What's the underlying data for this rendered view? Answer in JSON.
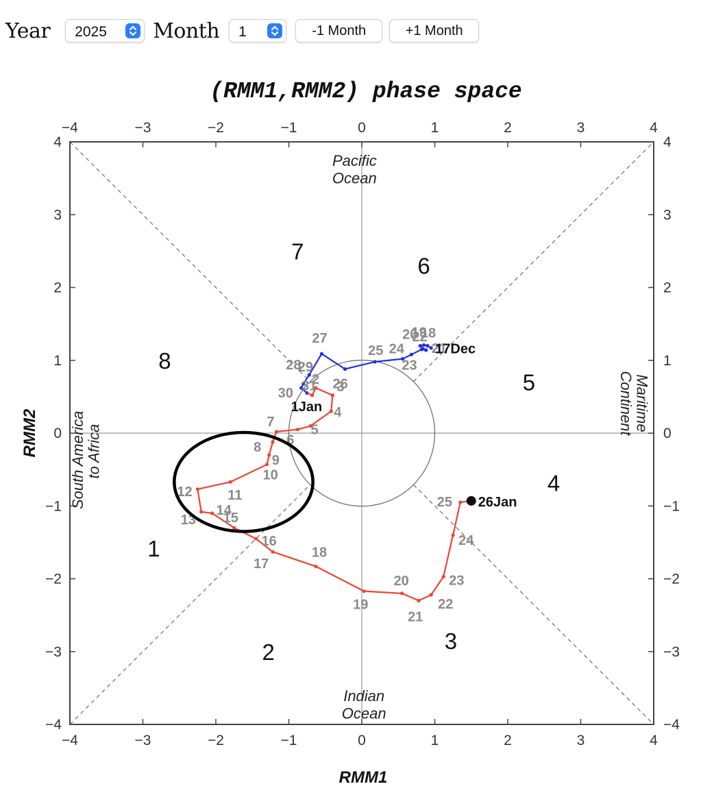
{
  "controls": {
    "year_label": "Year",
    "year_value": "2025",
    "month_label": "Month",
    "month_value": "1",
    "prev_month_label": "-1 Month",
    "next_month_label": "+1 Month",
    "accent_color": "#2c7ef5"
  },
  "chart_data": {
    "type": "scatter",
    "title": "(RMM1,RMM2) phase space",
    "xlabel": "RMM1",
    "ylabel": "RMM2",
    "xlim": [
      -4,
      4
    ],
    "ylim": [
      -4,
      4
    ],
    "ticks": [
      "−4",
      "−3",
      "−2",
      "−1",
      "0",
      "1",
      "2",
      "3",
      "4"
    ],
    "tick_values": [
      -4,
      -3,
      -2,
      -1,
      0,
      1,
      2,
      3,
      4
    ],
    "amplitude_circle_radius": 1,
    "region_labels": {
      "top": [
        "Pacific",
        "Ocean"
      ],
      "bottom": [
        "Indian",
        "Ocean"
      ],
      "left": [
        "South America",
        "to Africa"
      ],
      "right": [
        "Maritime",
        "Continent"
      ]
    },
    "phases": [
      {
        "label": "1",
        "x": -2.85,
        "y": -1.58
      },
      {
        "label": "2",
        "x": -1.28,
        "y": -3.0
      },
      {
        "label": "3",
        "x": 1.22,
        "y": -2.85
      },
      {
        "label": "4",
        "x": 2.63,
        "y": -0.68
      },
      {
        "label": "5",
        "x": 2.29,
        "y": 0.7
      },
      {
        "label": "6",
        "x": 0.85,
        "y": 2.3
      },
      {
        "label": "7",
        "x": -0.88,
        "y": 2.5
      },
      {
        "label": "8",
        "x": -2.7,
        "y": 1.0
      }
    ],
    "series": [
      {
        "name": "December",
        "color": "#1f2fe6",
        "points": [
          {
            "day": "17",
            "x": 0.95,
            "y": 1.17
          },
          {
            "day": "18",
            "x": 0.9,
            "y": 1.2
          },
          {
            "day": "19",
            "x": 0.85,
            "y": 1.21
          },
          {
            "day": "20",
            "x": 0.8,
            "y": 1.2
          },
          {
            "day": "21",
            "x": 0.88,
            "y": 1.14
          },
          {
            "day": "22",
            "x": 0.82,
            "y": 1.15
          },
          {
            "day": "23",
            "x": 0.68,
            "y": 1.08
          },
          {
            "day": "24",
            "x": 0.56,
            "y": 1.02
          },
          {
            "day": "25",
            "x": 0.18,
            "y": 0.98
          },
          {
            "day": "26",
            "x": -0.23,
            "y": 0.88
          },
          {
            "day": "27",
            "x": -0.55,
            "y": 1.09
          },
          {
            "day": "28",
            "x": -0.72,
            "y": 0.8
          },
          {
            "day": "29",
            "x": -0.8,
            "y": 0.68
          },
          {
            "day": "30",
            "x": -0.83,
            "y": 0.62
          },
          {
            "day": "31",
            "x": -0.75,
            "y": 0.55
          }
        ]
      },
      {
        "name": "January",
        "color": "#ee4433",
        "points": [
          {
            "day": "1",
            "x": -0.68,
            "y": 0.52
          },
          {
            "day": "2",
            "x": -0.63,
            "y": 0.62
          },
          {
            "day": "3",
            "x": -0.4,
            "y": 0.52
          },
          {
            "day": "4",
            "x": -0.42,
            "y": 0.3
          },
          {
            "day": "5",
            "x": -0.7,
            "y": 0.1
          },
          {
            "day": "6",
            "x": -0.88,
            "y": 0.05
          },
          {
            "day": "7",
            "x": -1.17,
            "y": 0.02
          },
          {
            "day": "8",
            "x": -1.22,
            "y": -0.12
          },
          {
            "day": "9",
            "x": -1.27,
            "y": -0.3
          },
          {
            "day": "10",
            "x": -1.3,
            "y": -0.43
          },
          {
            "day": "11",
            "x": -1.8,
            "y": -0.67
          },
          {
            "day": "12",
            "x": -2.25,
            "y": -0.77
          },
          {
            "day": "13",
            "x": -2.2,
            "y": -1.08
          },
          {
            "day": "14",
            "x": -2.05,
            "y": -1.1
          },
          {
            "day": "15",
            "x": -1.75,
            "y": -1.3
          },
          {
            "day": "16",
            "x": -1.45,
            "y": -1.45
          },
          {
            "day": "17",
            "x": -1.22,
            "y": -1.63
          },
          {
            "day": "18",
            "x": -0.63,
            "y": -1.83
          },
          {
            "day": "19",
            "x": 0.03,
            "y": -2.17
          },
          {
            "day": "20",
            "x": 0.55,
            "y": -2.2
          },
          {
            "day": "21",
            "x": 0.78,
            "y": -2.3
          },
          {
            "day": "22",
            "x": 0.95,
            "y": -2.22
          },
          {
            "day": "23",
            "x": 1.12,
            "y": -1.97
          },
          {
            "day": "24",
            "x": 1.25,
            "y": -1.4
          },
          {
            "day": "25",
            "x": 1.35,
            "y": -0.95
          },
          {
            "day": "26",
            "x": 1.5,
            "y": -0.93
          }
        ]
      }
    ],
    "end_labels": {
      "start": "17Dec",
      "first_of_month": "1Jan",
      "end": "26Jan"
    },
    "highlight_ellipse": {
      "cx": -1.62,
      "cy": -0.67,
      "rx": 0.95,
      "ry": 0.68
    }
  }
}
